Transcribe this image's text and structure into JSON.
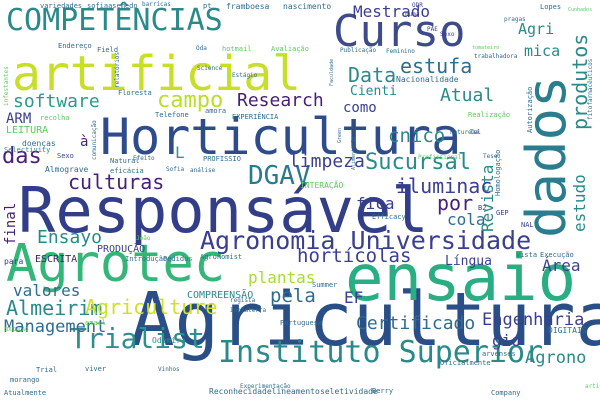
{
  "palette": {
    "dark_navy": "#3b3f8f",
    "indigo": "#48207a",
    "deep_purple": "#440154",
    "steel_blue": "#2f6c8e",
    "teal": "#21918c",
    "sea_green": "#27ad81",
    "green": "#5ec962",
    "lime": "#addc30",
    "yellow": "#fde725"
  },
  "words": [
    {
      "text": "Agricultura",
      "color": "#2a4f86"
    },
    {
      "text": "Responsável",
      "color": "#323e88"
    },
    {
      "text": "Horticultura",
      "color": "#2e4c8c"
    },
    {
      "text": "Agrotec",
      "color": "#34b679"
    },
    {
      "text": "ensaio",
      "color": "#28ae80"
    },
    {
      "text": "dados",
      "color": "#2a7d8e"
    },
    {
      "text": "artificial",
      "color": "#c8df2a"
    },
    {
      "text": "Curso",
      "color": "#3d4b8a"
    },
    {
      "text": "COMPETÊNCIAS",
      "color": "#2a8a8a"
    },
    {
      "text": "Instituto Superior",
      "color": "#2a8a8a"
    },
    {
      "text": "Agronomia Universidade",
      "color": "#3b3f8f"
    },
    {
      "text": "Trialist",
      "color": "#2f8f8e"
    },
    {
      "text": "DGAV",
      "color": "#2a7a8e"
    },
    {
      "text": "campo",
      "color": "#b9de2b"
    },
    {
      "text": "Data",
      "color": "#2a8a8a"
    },
    {
      "text": "estufa",
      "color": "#2f6c8e"
    },
    {
      "text": "Research",
      "color": "#48207a"
    },
    {
      "text": "Sucursal",
      "color": "#2a8a8a"
    },
    {
      "text": "culturas",
      "color": "#48207a"
    },
    {
      "text": "iluminac",
      "color": "#3b3f8f"
    },
    {
      "text": "Almeirim",
      "color": "#2a8a8a"
    },
    {
      "text": "Management",
      "color": "#2f6c8e"
    },
    {
      "text": "Agriculture",
      "color": "#cfe11f"
    },
    {
      "text": "Certificado",
      "color": "#2f6c8e"
    },
    {
      "text": "Engenharia",
      "color": "#3b3f8f"
    },
    {
      "text": "Agrono",
      "color": "#2a8a8a"
    },
    {
      "text": "Ensayo",
      "color": "#2a8a8a"
    },
    {
      "text": "software",
      "color": "#2a9a8c"
    },
    {
      "text": "Mestrado",
      "color": "#3b3f8f"
    },
    {
      "text": "limpeza",
      "color": "#3b3f8f"
    },
    {
      "text": "hortícolas",
      "color": "#3b3f8f"
    },
    {
      "text": "pela",
      "color": "#2f6c8e"
    },
    {
      "text": "das",
      "color": "#48207a"
    },
    {
      "text": "por",
      "color": "#48207a"
    },
    {
      "text": "Atual",
      "color": "#2a8a8a"
    },
    {
      "text": "cnico",
      "color": "#2a8a8a"
    },
    {
      "text": "como",
      "color": "#3b3f8f"
    },
    {
      "text": "estudo",
      "color": "#2a8a8a"
    },
    {
      "text": "produtos",
      "color": "#2a8a8a"
    },
    {
      "text": "Revista",
      "color": "#2a8a8a"
    },
    {
      "text": "Cienti",
      "color": "#2a8a8a"
    },
    {
      "text": "valores",
      "color": "#2f6c8e"
    },
    {
      "text": "plantas",
      "color": "#a8dc30"
    },
    {
      "text": "Área",
      "color": "#3b3f8f"
    },
    {
      "text": "Língua",
      "color": "#3b3f8f"
    },
    {
      "text": "cola",
      "color": "#2f6c8e"
    },
    {
      "text": "gio",
      "color": "#3b3f8f"
    },
    {
      "text": "fica",
      "color": "#3b3f8f"
    },
    {
      "text": "EF",
      "color": "#3b3f8f"
    },
    {
      "text": "final",
      "color": "#48207a"
    },
    {
      "text": "ARM",
      "color": "#3b3f8f"
    },
    {
      "text": "Agri",
      "color": "#2a8a8a"
    },
    {
      "text": "mica",
      "color": "#2a8a8a"
    },
    {
      "text": "PRODUÇÃO",
      "color": "#3b3f8f"
    },
    {
      "text": "ESCRITA",
      "color": "#48207a"
    },
    {
      "text": "COMPREENSÃO",
      "color": "#2a8a8a"
    },
    {
      "text": "Odemira",
      "color": "#2a8a8a"
    },
    {
      "text": "Reconhecida",
      "color": "#2f6c8e"
    },
    {
      "text": "delineamento",
      "color": "#2f6c8e"
    },
    {
      "text": "seletividade",
      "color": "#2f6c8e"
    },
    {
      "text": "LEITURA",
      "color": "#5ec962"
    },
    {
      "text": "Selectivity",
      "color": "#2a8a8a"
    },
    {
      "text": "Almograve",
      "color": "#2f6c8e"
    },
    {
      "text": "Sexo",
      "color": "#3b3f8f"
    },
    {
      "text": "doenças",
      "color": "#2f6c8e"
    },
    {
      "text": "recolha",
      "color": "#5ec962"
    },
    {
      "text": "Atualmente",
      "color": "#2f6c8e"
    },
    {
      "text": "morango",
      "color": "#2f6c8e"
    },
    {
      "text": "variedades",
      "color": "#2f6c8e"
    },
    {
      "text": "sofiaasemedo",
      "color": "#2f6c8e"
    },
    {
      "text": "framboesa",
      "color": "#2f6c8e"
    },
    {
      "text": "nascimento",
      "color": "#2f6c8e"
    },
    {
      "text": "barricas",
      "color": "#2f6c8e"
    },
    {
      "text": "pt",
      "color": "#2f6c8e"
    },
    {
      "text": "Endereço",
      "color": "#2f6c8e"
    },
    {
      "text": "Field",
      "color": "#2f6c8e"
    },
    {
      "text": "hotmail",
      "color": "#5ec962"
    },
    {
      "text": "Avaliação",
      "color": "#5ec962"
    },
    {
      "text": "Publicação",
      "color": "#2f6c8e"
    },
    {
      "text": "Feminino",
      "color": "#2f6c8e"
    },
    {
      "text": "Nacionalidade",
      "color": "#2f6c8e"
    },
    {
      "text": "Estágio",
      "color": "#2f6c8e"
    },
    {
      "text": "Science",
      "color": "#2f6c8e"
    },
    {
      "text": "Floresta",
      "color": "#2f6c8e"
    },
    {
      "text": "Telefone",
      "color": "#2f6c8e"
    },
    {
      "text": "EXPERIÊNCIA",
      "color": "#2f6c8e"
    },
    {
      "text": "Realização",
      "color": "#5ec962"
    },
    {
      "text": "PROFISSIO",
      "color": "#2f6c8e"
    },
    {
      "text": "INTERAÇÃO",
      "color": "#5ec962"
    },
    {
      "text": "Efficacy",
      "color": "#2f6c8e"
    },
    {
      "text": "Profissional",
      "color": "#5ec962"
    },
    {
      "text": "Autorização",
      "color": "#2f6c8e"
    },
    {
      "text": "Homologação",
      "color": "#2f6c8e"
    },
    {
      "text": "Experimentação",
      "color": "#2f6c8e"
    },
    {
      "text": "Agronomist",
      "color": "#2f6c8e"
    },
    {
      "text": "Introdução",
      "color": "#2f6c8e"
    },
    {
      "text": "Pedidos",
      "color": "#2f6c8e"
    },
    {
      "text": "Execução",
      "color": "#2f6c8e"
    },
    {
      "text": "Portuguesa",
      "color": "#2f6c8e"
    },
    {
      "text": "Summer",
      "color": "#2f6c8e"
    },
    {
      "text": "DIGITAIS",
      "color": "#2f6c8e"
    },
    {
      "text": "Lopes",
      "color": "#2f6c8e"
    },
    {
      "text": "Company",
      "color": "#2f6c8e"
    },
    {
      "text": "Berry",
      "color": "#2f6c8e"
    },
    {
      "text": "Oficialmente",
      "color": "#2f6c8e"
    },
    {
      "text": "arvenses",
      "color": "#2f6c8e"
    },
    {
      "text": "Sofia",
      "color": "#2f6c8e"
    },
    {
      "text": "análise",
      "color": "#2f6c8e"
    },
    {
      "text": "Vinhos",
      "color": "#2f6c8e"
    },
    {
      "text": "Trial",
      "color": "#2f6c8e"
    },
    {
      "text": "viver",
      "color": "#2f6c8e"
    },
    {
      "text": "natureza",
      "color": "#2f6c8e"
    },
    {
      "text": "vista",
      "color": "#2f6c8e"
    },
    {
      "text": "pragas",
      "color": "#2f6c8e"
    },
    {
      "text": "Natural",
      "color": "#2f6c8e"
    },
    {
      "text": "eficácia",
      "color": "#2f6c8e"
    },
    {
      "text": "comunicação",
      "color": "#2f6c8e"
    },
    {
      "text": "amora",
      "color": "#2f6c8e"
    },
    {
      "text": "relatórios",
      "color": "#2f6c8e"
    },
    {
      "text": "infestantes",
      "color": "#5ec962"
    },
    {
      "text": "fitofarmacêuticos",
      "color": "#2f6c8e"
    },
    {
      "text": "Cunhados",
      "color": "#5ec962"
    },
    {
      "text": "trabalhadora",
      "color": "#2f6c8e"
    },
    {
      "text": "Faculdade",
      "color": "#2f6c8e"
    },
    {
      "text": "tomateiro",
      "color": "#5ec962"
    },
    {
      "text": "Alimentação",
      "color": "#2f6c8e"
    },
    {
      "text": "Green",
      "color": "#2f6c8e"
    },
    {
      "text": "Tese",
      "color": "#2f6c8e"
    },
    {
      "text": "GEP",
      "color": "#3b3f8f"
    },
    {
      "text": "NAL",
      "color": "#3b3f8f"
    },
    {
      "text": "B2",
      "color": "#3b3f8f"
    },
    {
      "text": "Tel",
      "color": "#3b3f8f"
    },
    {
      "text": "Sexo",
      "color": "#3b3f8f"
    },
    {
      "text": "PAE",
      "color": "#3b3f8f"
    },
    {
      "text": "ODR",
      "color": "#3b3f8f"
    },
    {
      "text": "numa",
      "color": "#3b3f8f"
    },
    {
      "text": "João",
      "color": "#5ec962"
    },
    {
      "text": "email",
      "color": "#5ec962"
    },
    {
      "text": "regista",
      "color": "#2f6c8e"
    },
    {
      "text": "Inglaterra",
      "color": "#2f6c8e"
    },
    {
      "text": "EDUCAÇÃO",
      "color": "#5ec962"
    },
    {
      "text": "Efeito",
      "color": "#2f6c8e"
    },
    {
      "text": "Oda",
      "color": "#2f6c8e"
    },
    {
      "text": "para",
      "color": "#3b3f8f"
    },
    {
      "text": "L",
      "color": "#2a9a8c"
    },
    {
      "text": "à",
      "color": "#48207a"
    },
    {
      "text": "artigo",
      "color": "#5ec962"
    }
  ]
}
